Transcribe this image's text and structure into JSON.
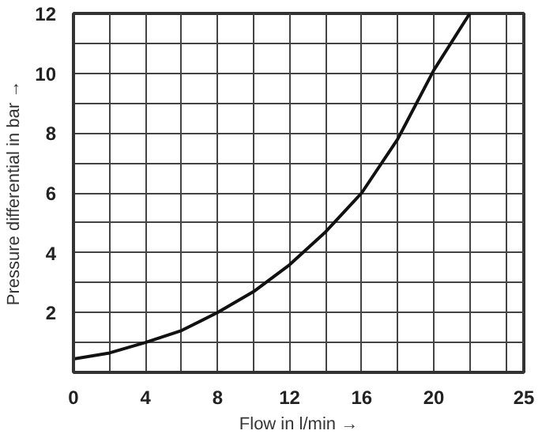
{
  "chart_data": {
    "type": "line",
    "xlabel": "Flow in l/min →",
    "ylabel": "Pressure differential in bar →",
    "x": [
      0,
      2,
      4,
      6,
      8,
      10,
      12,
      14,
      16,
      18,
      20,
      22
    ],
    "series": [
      {
        "color": "#111111",
        "values": [
          0.45,
          0.65,
          1.0,
          1.4,
          2.0,
          2.7,
          3.6,
          4.7,
          6.0,
          7.8,
          10.1,
          12
        ]
      }
    ],
    "xlim": [
      0,
      25
    ],
    "ylim": [
      0,
      12
    ],
    "xticks": [
      0,
      {
        "value": 2,
        "label": null
      },
      4,
      {
        "value": 6,
        "label": null
      },
      8,
      {
        "value": 10,
        "label": null
      },
      12,
      {
        "value": 14,
        "label": null
      },
      16,
      {
        "value": 18,
        "label": null
      },
      20,
      {
        "value": 22,
        "label": null
      },
      {
        "value": 24,
        "label": null
      },
      25
    ],
    "yticks": [
      {
        "value": 0,
        "label": null
      },
      {
        "value": 1,
        "label": null
      },
      2,
      {
        "value": 3,
        "label": null
      },
      4,
      {
        "value": 5,
        "label": null
      },
      6,
      {
        "value": 7,
        "label": null
      },
      8,
      {
        "value": 9,
        "label": null
      },
      10,
      {
        "value": 11,
        "label": null
      },
      12
    ],
    "grid": true,
    "marker": "none",
    "line_style": "solid"
  }
}
